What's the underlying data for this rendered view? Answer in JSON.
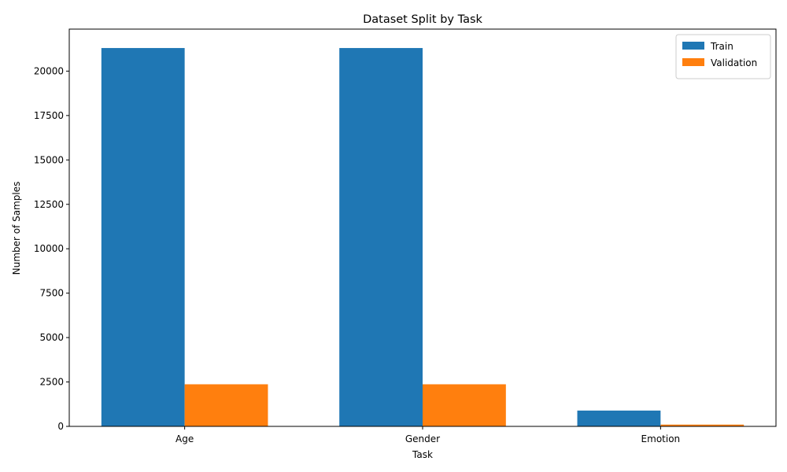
{
  "chart_data": {
    "type": "bar",
    "title": "Dataset Split by Task",
    "xlabel": "Task",
    "ylabel": "Number of Samples",
    "categories": [
      "Age",
      "Gender",
      "Emotion"
    ],
    "series": [
      {
        "name": "Train",
        "values": [
          21300,
          21300,
          890
        ],
        "color": "#1f77b4"
      },
      {
        "name": "Validation",
        "values": [
          2370,
          2370,
          100
        ],
        "color": "#ff7f0e"
      }
    ],
    "ylim": [
      0,
      22365
    ],
    "yticks": [
      0,
      2500,
      5000,
      7500,
      10000,
      12500,
      15000,
      17500,
      20000
    ],
    "grid": false,
    "legend_position": "top-right"
  }
}
